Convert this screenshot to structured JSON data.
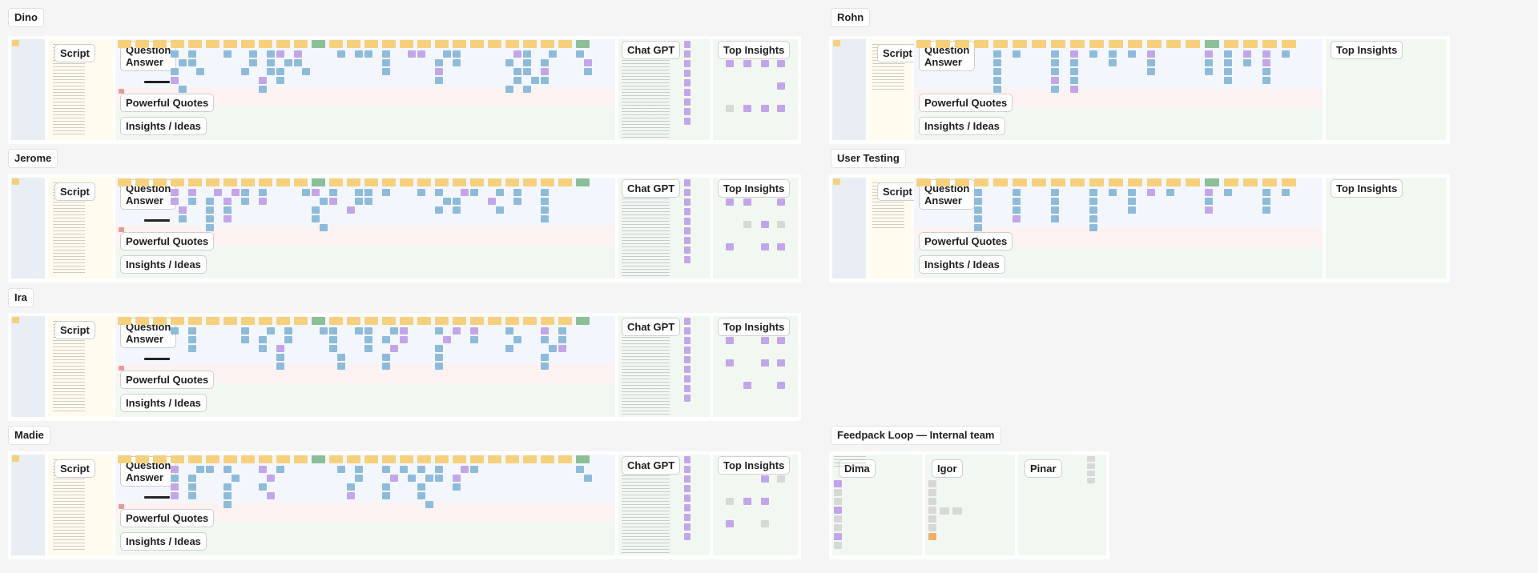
{
  "canvas": {
    "frames": [
      {
        "id": "dino",
        "title": "Dino",
        "layout": "full",
        "chat": true,
        "tags": {
          "script": "Script",
          "qa": "Question\nAnswer",
          "quotes": "Powerful Quotes",
          "insights": "Insights / Ideas",
          "chat": "Chat GPT",
          "top": "Top Insights"
        }
      },
      {
        "id": "rohn",
        "title": "Rohn",
        "layout": "right",
        "chat": false,
        "tags": {
          "script": "Script",
          "qa": "Question\nAnswer",
          "quotes": "Powerful Quotes",
          "insights": "Insights / Ideas",
          "top": "Top Insights"
        }
      },
      {
        "id": "jerome",
        "title": "Jerome",
        "layout": "full",
        "chat": true,
        "tags": {
          "script": "Script",
          "qa": "Question\nAnswer",
          "quotes": "Powerful Quotes",
          "insights": "Insights / Ideas",
          "chat": "Chat GPT",
          "top": "Top Insights"
        }
      },
      {
        "id": "user-testing",
        "title": "User Testing",
        "layout": "right",
        "chat": false,
        "tags": {
          "script": "Script",
          "qa": "Question\nAnswer",
          "quotes": "Powerful Quotes",
          "insights": "Insights / Ideas",
          "top": "Top Insights"
        }
      },
      {
        "id": "ira",
        "title": "Ira",
        "layout": "full",
        "chat": true,
        "tags": {
          "script": "Script",
          "qa": "Question\nAnswer",
          "quotes": "Powerful Quotes",
          "insights": "Insights / Ideas",
          "chat": "Chat GPT",
          "top": "Top Insights"
        }
      },
      {
        "id": "madie",
        "title": "Madie",
        "layout": "full",
        "chat": true,
        "tags": {
          "script": "Script",
          "qa": "Question\nAnswer",
          "quotes": "Powerful Quotes",
          "insights": "Insights / Ideas",
          "chat": "Chat GPT",
          "top": "Top Insights"
        }
      }
    ],
    "feedback_loop": {
      "title": "Feedpack Loop — Internal team",
      "members": [
        "Dima",
        "Igor",
        "Pinar"
      ]
    }
  }
}
